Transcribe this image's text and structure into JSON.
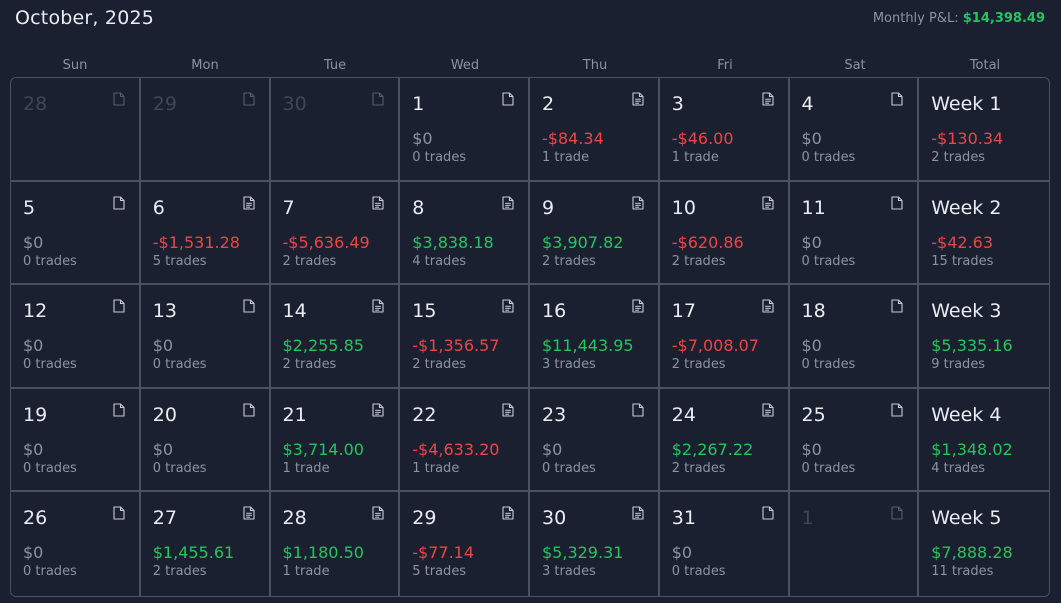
{
  "header": {
    "title": "October, 2025",
    "monthly_label": "Monthly P&L:",
    "monthly_value": "$14,398.49"
  },
  "day_headers": [
    "Sun",
    "Mon",
    "Tue",
    "Wed",
    "Thu",
    "Fri",
    "Sat",
    "Total"
  ],
  "colors": {
    "positive": "#22c55e",
    "negative": "#ef4444",
    "neutral": "#8b93a3",
    "background": "#1b2030",
    "border": "#4a5262"
  },
  "weeks": [
    {
      "days": [
        {
          "day": "28",
          "faded": true,
          "icon": "doc-outline-icon"
        },
        {
          "day": "29",
          "faded": true,
          "icon": "doc-outline-icon"
        },
        {
          "day": "30",
          "faded": true,
          "icon": "doc-outline-icon"
        },
        {
          "day": "1",
          "pnl": "$0",
          "trades": "0 trades",
          "sign": "zero",
          "icon": "doc-outline-icon"
        },
        {
          "day": "2",
          "pnl": "-$84.34",
          "trades": "1 trade",
          "sign": "neg",
          "icon": "doc-lines-icon"
        },
        {
          "day": "3",
          "pnl": "-$46.00",
          "trades": "1 trade",
          "sign": "neg",
          "icon": "doc-lines-icon"
        },
        {
          "day": "4",
          "pnl": "$0",
          "trades": "0 trades",
          "sign": "zero",
          "icon": "doc-outline-icon"
        }
      ],
      "total": {
        "label": "Week 1",
        "pnl": "-$130.34",
        "trades": "2 trades",
        "sign": "neg"
      }
    },
    {
      "days": [
        {
          "day": "5",
          "pnl": "$0",
          "trades": "0 trades",
          "sign": "zero",
          "icon": "doc-outline-icon"
        },
        {
          "day": "6",
          "pnl": "-$1,531.28",
          "trades": "5 trades",
          "sign": "neg",
          "icon": "doc-lines-icon"
        },
        {
          "day": "7",
          "pnl": "-$5,636.49",
          "trades": "2 trades",
          "sign": "neg",
          "icon": "doc-lines-icon"
        },
        {
          "day": "8",
          "pnl": "$3,838.18",
          "trades": "4 trades",
          "sign": "pos",
          "icon": "doc-lines-icon"
        },
        {
          "day": "9",
          "pnl": "$3,907.82",
          "trades": "2 trades",
          "sign": "pos",
          "icon": "doc-lines-icon"
        },
        {
          "day": "10",
          "pnl": "-$620.86",
          "trades": "2 trades",
          "sign": "neg",
          "icon": "doc-lines-icon"
        },
        {
          "day": "11",
          "pnl": "$0",
          "trades": "0 trades",
          "sign": "zero",
          "icon": "doc-outline-icon"
        }
      ],
      "total": {
        "label": "Week 2",
        "pnl": "-$42.63",
        "trades": "15 trades",
        "sign": "neg"
      }
    },
    {
      "days": [
        {
          "day": "12",
          "pnl": "$0",
          "trades": "0 trades",
          "sign": "zero",
          "icon": "doc-outline-icon"
        },
        {
          "day": "13",
          "pnl": "$0",
          "trades": "0 trades",
          "sign": "zero",
          "icon": "doc-outline-icon"
        },
        {
          "day": "14",
          "pnl": "$2,255.85",
          "trades": "2 trades",
          "sign": "pos",
          "icon": "doc-lines-icon"
        },
        {
          "day": "15",
          "pnl": "-$1,356.57",
          "trades": "2 trades",
          "sign": "neg",
          "icon": "doc-lines-icon"
        },
        {
          "day": "16",
          "pnl": "$11,443.95",
          "trades": "3 trades",
          "sign": "pos",
          "icon": "doc-lines-icon"
        },
        {
          "day": "17",
          "pnl": "-$7,008.07",
          "trades": "2 trades",
          "sign": "neg",
          "icon": "doc-lines-icon"
        },
        {
          "day": "18",
          "pnl": "$0",
          "trades": "0 trades",
          "sign": "zero",
          "icon": "doc-outline-icon"
        }
      ],
      "total": {
        "label": "Week 3",
        "pnl": "$5,335.16",
        "trades": "9 trades",
        "sign": "pos"
      }
    },
    {
      "days": [
        {
          "day": "19",
          "pnl": "$0",
          "trades": "0 trades",
          "sign": "zero",
          "icon": "doc-outline-icon"
        },
        {
          "day": "20",
          "pnl": "$0",
          "trades": "0 trades",
          "sign": "zero",
          "icon": "doc-outline-icon"
        },
        {
          "day": "21",
          "pnl": "$3,714.00",
          "trades": "1 trade",
          "sign": "pos",
          "icon": "doc-lines-icon"
        },
        {
          "day": "22",
          "pnl": "-$4,633.20",
          "trades": "1 trade",
          "sign": "neg",
          "icon": "doc-lines-icon"
        },
        {
          "day": "23",
          "pnl": "$0",
          "trades": "0 trades",
          "sign": "zero",
          "icon": "doc-outline-icon"
        },
        {
          "day": "24",
          "pnl": "$2,267.22",
          "trades": "2 trades",
          "sign": "pos",
          "icon": "doc-lines-icon"
        },
        {
          "day": "25",
          "pnl": "$0",
          "trades": "0 trades",
          "sign": "zero",
          "icon": "doc-outline-icon"
        }
      ],
      "total": {
        "label": "Week 4",
        "pnl": "$1,348.02",
        "trades": "4 trades",
        "sign": "pos"
      }
    },
    {
      "days": [
        {
          "day": "26",
          "pnl": "$0",
          "trades": "0 trades",
          "sign": "zero",
          "icon": "doc-outline-icon"
        },
        {
          "day": "27",
          "pnl": "$1,455.61",
          "trades": "2 trades",
          "sign": "pos",
          "icon": "doc-lines-icon"
        },
        {
          "day": "28",
          "pnl": "$1,180.50",
          "trades": "1 trade",
          "sign": "pos",
          "icon": "doc-lines-icon"
        },
        {
          "day": "29",
          "pnl": "-$77.14",
          "trades": "5 trades",
          "sign": "neg",
          "icon": "doc-lines-icon"
        },
        {
          "day": "30",
          "pnl": "$5,329.31",
          "trades": "3 trades",
          "sign": "pos",
          "icon": "doc-lines-icon"
        },
        {
          "day": "31",
          "pnl": "$0",
          "trades": "0 trades",
          "sign": "zero",
          "icon": "doc-outline-icon"
        },
        {
          "day": "1",
          "faded": true,
          "icon": "doc-outline-icon"
        }
      ],
      "total": {
        "label": "Week 5",
        "pnl": "$7,888.28",
        "trades": "11 trades",
        "sign": "pos"
      }
    }
  ]
}
